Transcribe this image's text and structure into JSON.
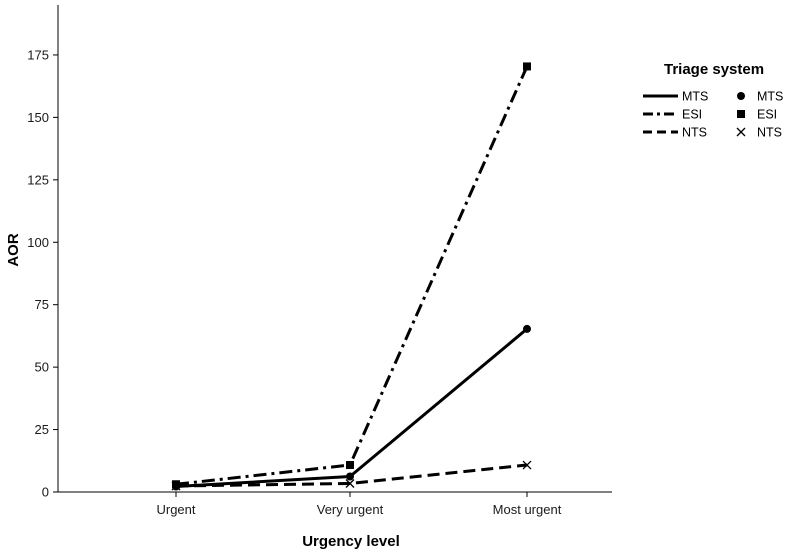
{
  "chart_data": {
    "type": "line",
    "xlabel": "Urgency level",
    "ylabel": "AOR",
    "categories": [
      "Urgent",
      "Very urgent",
      "Most urgent"
    ],
    "ylim": [
      0,
      195
    ],
    "yticks": [
      0,
      25,
      50,
      75,
      100,
      125,
      150,
      175
    ],
    "grid": false,
    "legend": {
      "title": "Triage system",
      "placement": "right"
    },
    "series": [
      {
        "name": "MTS",
        "values": [
          2.2,
          6.2,
          65.3
        ],
        "line_style": "solid",
        "marker": "circle"
      },
      {
        "name": "ESI",
        "values": [
          3.1,
          10.8,
          170.4
        ],
        "line_style": "dash-dot",
        "marker": "square"
      },
      {
        "name": "NTS",
        "values": [
          2.4,
          3.4,
          10.8
        ],
        "line_style": "dashed",
        "marker": "x"
      }
    ]
  }
}
